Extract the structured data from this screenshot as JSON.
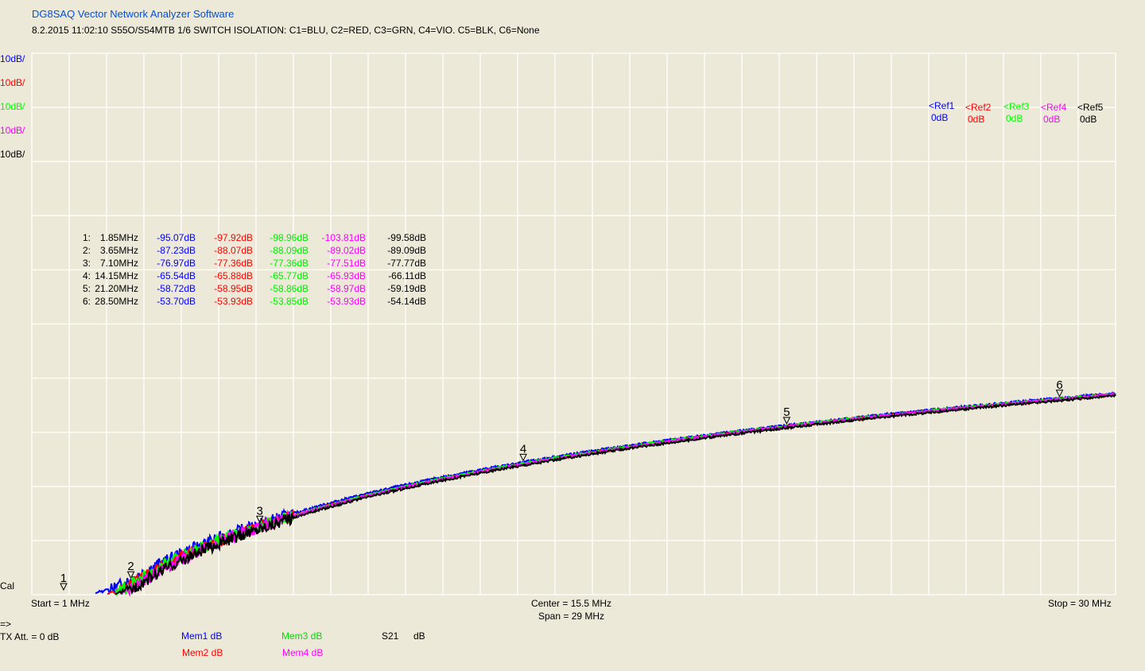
{
  "header": {
    "app_title": "DG8SAQ Vector Network Analyzer Software",
    "subtitle": "8.2.2015   11:02:10    S55O/S54MTB 1/6 SWITCH ISOLATION: C1=BLU, C2=RED, C3=GRN, C4=VIO. C5=BLK, C6=None"
  },
  "colors": {
    "background": "#ece9d8",
    "grid": "#ffffff",
    "c1": "#0000ff",
    "c2": "#ff0000",
    "c3": "#00ff00",
    "c4": "#ff00ff",
    "c5": "#000000",
    "title": "#0050e0"
  },
  "scales": [
    {
      "label": "10dB/",
      "color": "#0000ff"
    },
    {
      "label": "10dB/",
      "color": "#ff0000"
    },
    {
      "label": "10dB/",
      "color": "#00ff00"
    },
    {
      "label": "10dB/",
      "color": "#ff00ff"
    },
    {
      "label": "10dB/",
      "color": "#000000"
    }
  ],
  "refs": [
    {
      "name": "<Ref1",
      "value": "0dB",
      "color": "#0000ff"
    },
    {
      "name": "<Ref2",
      "value": "0dB",
      "color": "#ff0000"
    },
    {
      "name": "<Ref3",
      "value": "0dB",
      "color": "#00ff00"
    },
    {
      "name": "<Ref4",
      "value": "0dB",
      "color": "#ff00ff"
    },
    {
      "name": "<Ref5",
      "value": "0dB",
      "color": "#000000"
    }
  ],
  "markers": [
    {
      "id": "1:",
      "freq": "1.85MHz",
      "vals": [
        "-95.07dB",
        "-97.92dB",
        "-98.96dB",
        "-103.81dB",
        "-99.58dB"
      ]
    },
    {
      "id": "2:",
      "freq": "3.65MHz",
      "vals": [
        "-87.23dB",
        "-88.07dB",
        "-88.09dB",
        "-89.02dB",
        "-89.09dB"
      ]
    },
    {
      "id": "3:",
      "freq": "7.10MHz",
      "vals": [
        "-76.97dB",
        "-77.36dB",
        "-77.36dB",
        "-77.51dB",
        "-77.77dB"
      ]
    },
    {
      "id": "4:",
      "freq": "14.15MHz",
      "vals": [
        "-65.54dB",
        "-65.88dB",
        "-65.77dB",
        "-65.93dB",
        "-66.11dB"
      ]
    },
    {
      "id": "5:",
      "freq": "21.20MHz",
      "vals": [
        "-58.72dB",
        "-58.95dB",
        "-58.86dB",
        "-58.97dB",
        "-59.19dB"
      ]
    },
    {
      "id": "6:",
      "freq": "28.50MHz",
      "vals": [
        "-53.70dB",
        "-53.93dB",
        "-53.85dB",
        "-53.93dB",
        "-54.14dB"
      ]
    }
  ],
  "chart_data": {
    "type": "line",
    "xlabel": "",
    "ylabel": "",
    "xlim": [
      1,
      30
    ],
    "ylim": [
      -90,
      10
    ],
    "x_unit": "MHz",
    "y_divisions_db": 10,
    "grid": true,
    "marker_freqs": [
      1.85,
      3.65,
      7.1,
      14.15,
      21.2,
      28.5
    ],
    "series": [
      {
        "color": "#0000ff",
        "values": [
          -95.07,
          -87.23,
          -76.97,
          -65.54,
          -58.72,
          -53.7
        ]
      },
      {
        "color": "#ff0000",
        "values": [
          -97.92,
          -88.07,
          -77.36,
          -65.88,
          -58.95,
          -53.93
        ]
      },
      {
        "color": "#00ff00",
        "values": [
          -98.96,
          -88.09,
          -77.36,
          -65.77,
          -58.86,
          -53.85
        ]
      },
      {
        "color": "#ff00ff",
        "values": [
          -103.81,
          -89.02,
          -77.51,
          -65.93,
          -58.97,
          -53.93
        ]
      },
      {
        "color": "#000000",
        "values": [
          -99.58,
          -89.09,
          -77.77,
          -66.11,
          -59.19,
          -54.14
        ]
      }
    ]
  },
  "footer": {
    "cal": "Cal",
    "start": "Start = 1 MHz",
    "center": "Center = 15.5 MHz",
    "span": "Span = 29 MHz",
    "stop": "Stop = 30 MHz",
    "arrow": "=>",
    "tx_att": "TX Att.  = 0 dB",
    "mem1": "Mem1 dB",
    "mem2": "Mem2 dB",
    "mem3": "Mem3 dB",
    "mem4": "Mem4 dB",
    "s21": "S21",
    "s21_unit": "dB"
  }
}
